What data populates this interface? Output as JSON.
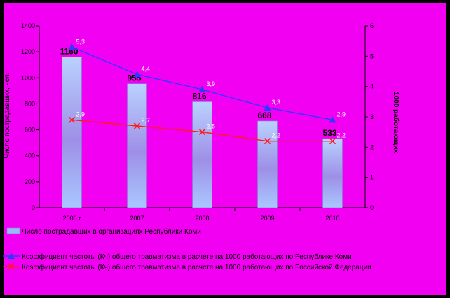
{
  "chart_data": {
    "type": "bar+line",
    "categories": [
      "2006 г",
      "2007",
      "2008",
      "2009",
      "2010"
    ],
    "bar_series": {
      "name": "Число пострадавших в организациях Республики Коми",
      "values": [
        1160,
        955,
        816,
        668,
        533
      ],
      "color": "#9AB8F5"
    },
    "line_series": [
      {
        "name": "Коэффициент частоты (Кч) общего травматизма в расчете на 1000 работающих по Республике Коми",
        "values": [
          5.3,
          4.4,
          3.9,
          3.3,
          2.9
        ],
        "labels": [
          "5,3",
          "4,4",
          "3,9",
          "3,3",
          "2,9"
        ],
        "color": "#2A3BFF",
        "marker": "triangle"
      },
      {
        "name": "Коэффициент частоты (Кч) общего травматизма в расчете на 1000 работающих по Российской Федерации",
        "values": [
          2.9,
          2.7,
          2.5,
          2.2,
          2.2
        ],
        "labels": [
          "2,9",
          "2,7",
          "2,5",
          "2,2",
          "2,2"
        ],
        "color": "#FF1A1A",
        "marker": "x"
      }
    ],
    "y_left": {
      "min": 0,
      "max": 1400,
      "step": 200,
      "label": "Число пострадавших, чел."
    },
    "y_right": {
      "min": 0,
      "max": 6,
      "step": 1,
      "label": "1000 работающих"
    },
    "grid": false,
    "legend_position": "bottom"
  }
}
